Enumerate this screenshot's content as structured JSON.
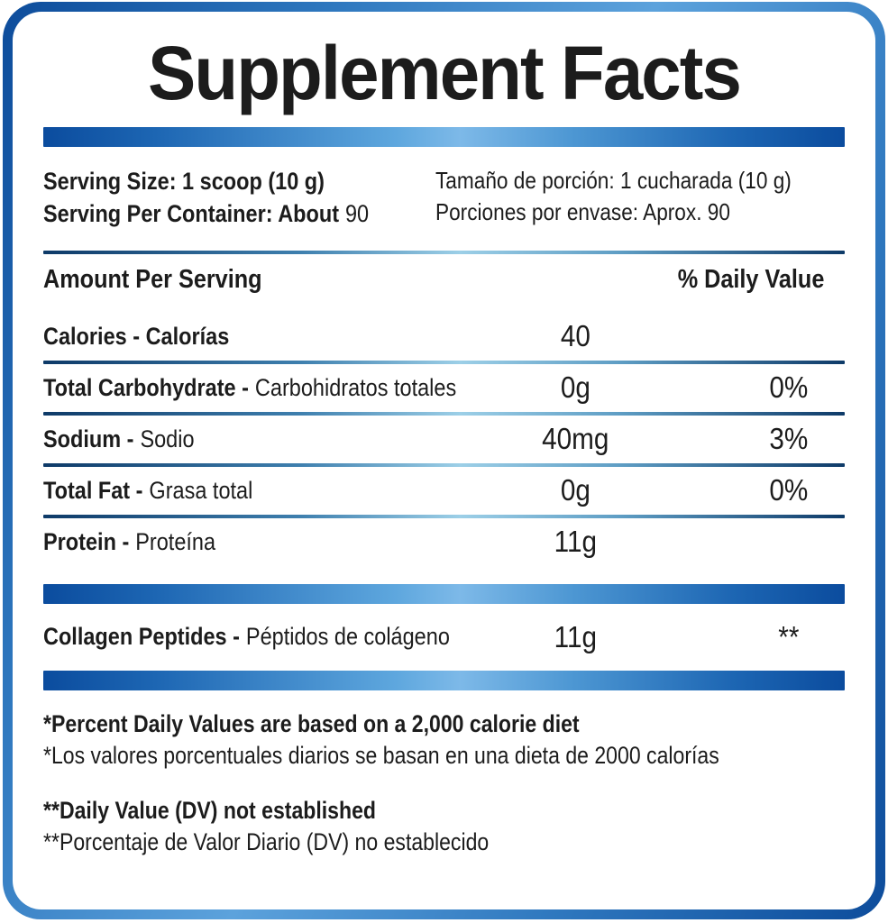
{
  "title": "Supplement Facts",
  "serving": {
    "size_en": "Serving Size: 1 scoop (10 g)",
    "per_container_label": "Serving Per Container: About",
    "per_container_value": "90",
    "size_es": "Tamaño de porción: 1 cucharada (10 g)",
    "per_container_es": "Porciones por envase: Aprox. 90"
  },
  "header": {
    "amount_per_serving": "Amount Per Serving",
    "daily_value": "% Daily Value"
  },
  "rows": [
    {
      "name_bold": "Calories - Calorías",
      "name_regular": "",
      "amount": "40",
      "dv": ""
    },
    {
      "name_bold": "Total Carbohydrate -",
      "name_regular": "Carbohidratos totales",
      "amount": "0g",
      "dv": "0%"
    },
    {
      "name_bold": "Sodium -",
      "name_regular": "Sodio",
      "amount": "40mg",
      "dv": "3%"
    },
    {
      "name_bold": "Total Fat -",
      "name_regular": "Grasa total",
      "amount": "0g",
      "dv": "0%"
    },
    {
      "name_bold": "Protein -",
      "name_regular": "Proteína",
      "amount": "11g",
      "dv": ""
    }
  ],
  "collagen_row": {
    "name_bold": "Collagen Peptides -",
    "name_regular": "Péptidos de colágeno",
    "amount": "11g",
    "dv": "**"
  },
  "footnotes": {
    "percent_dv_en": "*Percent Daily Values are based on a 2,000 calorie diet",
    "percent_dv_es": "*Los valores porcentuales diarios se basan en una dieta de 2000 calorías",
    "not_established_en": "**Daily Value (DV) not established",
    "not_established_es": "**Porcentaje de Valor Diario (DV) no establecido"
  },
  "colors": {
    "border_blue_dark": "#0d4c9b",
    "border_blue_light": "#5ca2dc",
    "bar_blue_dark": "#0b4c9e",
    "bar_blue_light": "#7db9e8",
    "thin_rule_dark": "#0e3a68",
    "thin_rule_light": "#9ccfe7",
    "text": "#1c1c1c"
  }
}
